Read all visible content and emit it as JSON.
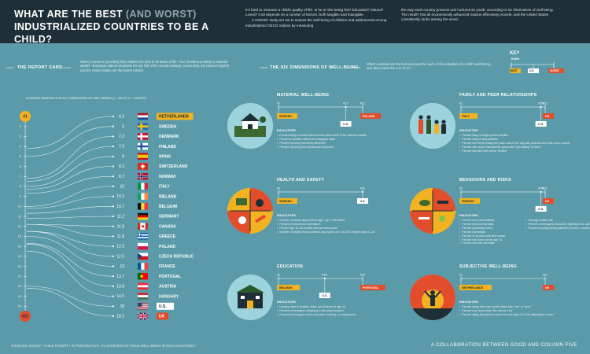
{
  "header": {
    "title_part1": "What are the best",
    "title_part2": "(and worst)",
    "title_part3": "industrialized countries to be a child?",
    "intro_left_1": "It's hard to measure a child's quality of life. Is he or she being fed? Educated? Valued? Loved? It all depends on a number of factors, both tangible and intangible.",
    "intro_left_2": "A UNICEF study set out to assess the well-being of children and adolescents among industrialized OECD nations by measuring",
    "intro_right": "the way each country protects and nurtures its youth, according to six dimensions of well-being. The result? Not all economically advanced nations effectively provide, and the United States consistently ranks among the worst."
  },
  "report_card": {
    "heading": "THE REPORT CARD",
    "description": "When it comes to providing their children the best of all facets of life—from health and safety to material wealth—European nations dominate the top half of the overall rankings. Conversely, the United Kingdom and the United States are the lowest ranked.",
    "axis_caption": "AVERAGE RANKING FOR ALL DIMENSIONS OF WELL-BEING (1 = BEST; 21 = WORST)",
    "best_label": "#1",
    "worst_label": "#21"
  },
  "six_dimensions": {
    "heading": "THE SIX DIMENSIONS OF WELL-BEING",
    "description": "Which countries are the best and worst for each of the indicators of a child's well-being, and where does the U.S. fit in?"
  },
  "key": {
    "title": "KEY",
    "rank_label": "RANK",
    "best": "BEST",
    "us": "U.S.",
    "worst": "WORST"
  },
  "colors": {
    "background": "#5a9aa9",
    "header": "#1f2f37",
    "best": "#f3b320",
    "worst": "#e24d2c",
    "us": "#ffffff",
    "line": "#ffffff"
  },
  "chart_data": {
    "type": "table",
    "title": "Average ranking for all dimensions of well-being (1 = best; 21 = worst)",
    "countries": [
      {
        "name": "NETHERLANDS",
        "score": 4.2,
        "flag": "netherlands-flag"
      },
      {
        "name": "SWEDEN",
        "score": 5,
        "flag": "sweden-flag"
      },
      {
        "name": "DENMARK",
        "score": 7.2,
        "flag": "denmark-flag"
      },
      {
        "name": "FINLAND",
        "score": 7.5,
        "flag": "finland-flag"
      },
      {
        "name": "SPAIN",
        "score": 8,
        "flag": "spain-flag"
      },
      {
        "name": "SWITZERLAND",
        "score": 8.3,
        "flag": "switzerland-flag"
      },
      {
        "name": "NORWAY",
        "score": 8.7,
        "flag": "norway-flag"
      },
      {
        "name": "ITALY",
        "score": 10,
        "flag": "italy-flag"
      },
      {
        "name": "IRELAND",
        "score": 10.2,
        "flag": "ireland-flag"
      },
      {
        "name": "BELGIUM",
        "score": 10.7,
        "flag": "belgium-flag"
      },
      {
        "name": "GERMANY",
        "score": 11.2,
        "flag": "germany-flag"
      },
      {
        "name": "CANADA",
        "score": 11.8,
        "flag": "canada-flag"
      },
      {
        "name": "GREECE",
        "score": 11.8,
        "flag": "greece-flag"
      },
      {
        "name": "POLAND",
        "score": 12.5,
        "flag": "poland-flag"
      },
      {
        "name": "CZECH REPUBLIC",
        "score": 12.5,
        "flag": "czech-flag"
      },
      {
        "name": "FRANCE",
        "score": 13,
        "flag": "france-flag"
      },
      {
        "name": "PORTUGAL",
        "score": 13.7,
        "flag": "portugal-flag"
      },
      {
        "name": "AUSTRIA",
        "score": 13.8,
        "flag": "austria-flag"
      },
      {
        "name": "HUNGARY",
        "score": 14.5,
        "flag": "hungary-flag"
      },
      {
        "name": "U.S.",
        "score": 18,
        "flag": "us-flag"
      },
      {
        "name": "UK",
        "score": 18.2,
        "flag": "uk-flag"
      }
    ],
    "rank_ticks": [
      "1",
      "2",
      "3",
      "4",
      "5",
      "6",
      "7",
      "8",
      "9",
      "10",
      "11",
      "12",
      "13",
      "14",
      "15",
      "16",
      "17",
      "18",
      "19",
      "20",
      "21"
    ],
    "score_range": [
      1,
      21
    ]
  },
  "dimensions": [
    {
      "title": "MATERIAL WELL-BEING",
      "illustration": "house-icon",
      "best_rank": "#1",
      "best_country": "SWEDEN",
      "us_rank": "#17",
      "us_label": "U.S.",
      "worst_rank": "#21",
      "worst_country": "POLAND",
      "us_fraction": 0.8,
      "indicators_heading": "INDICATORS",
      "indicators": [
        "Percent living in homes with incomes below 50% of the national median.",
        "Percent in families without an employed adult.",
        "Percent reporting low family affluence.",
        "Percent reporting few educational resources."
      ]
    },
    {
      "title": "FAMILY AND PEER RELATIONSHIPS",
      "illustration": "family-icon",
      "best_rank": "#1",
      "best_country": "ITALY",
      "us_rank": "#20",
      "us_label": "U.S.",
      "worst_rank": "#21",
      "worst_country": "UK",
      "us_fraction": 0.95,
      "indicators_heading": "INDICATORS",
      "indicators": [
        "Percent living in single-parent families.",
        "Percent living in step-families.",
        "Percent who report eating the main meal of the day with parents more than once a week.",
        "Percent who report that parents spend time \"just talking\" to them.",
        "Percent who find their peers \"helpful.\""
      ]
    },
    {
      "title": "HEALTH AND SAFETY",
      "illustration": "health-icon",
      "best_rank": "#1",
      "best_country": "SWEDEN",
      "us_rank": "#21",
      "us_label": "U.S.",
      "worst_rank": "",
      "worst_country": "",
      "us_fraction": 1.0,
      "indicators_heading": "INDICATORS",
      "indicators": [
        "Number of infants dying before age 1 per 1,000 births.",
        "Percent of infants born premature.",
        "Percent age 12–23 months who are immunized.",
        "Number of deaths from accidents and injuries per 100,000 children aged 0–19."
      ]
    },
    {
      "title": "BEHAVIORS AND RISKS",
      "illustration": "risks-icon",
      "best_rank": "#1",
      "best_country": "SWEDEN",
      "us_rank": "#20",
      "us_label": "U.S.",
      "worst_rank": "#21",
      "worst_country": "UK",
      "us_fraction": 0.95,
      "indicators_heading": "INDICATORS",
      "indicators": [
        "Percent who eat breakfast.",
        "Percent who eat fruit daily.",
        "Percent physically active.",
        "Percent overweight.",
        "Percent of 15-year-olds who smoke.",
        "Percent who have sex by age 15.",
        "Percent who use cannabis."
      ],
      "indicators_col2": [
        "Teenage fertility rate.",
        "Percent of teenagers involved in fighting in the last year.",
        "Percent reporting being bullied in the last 2 months."
      ]
    },
    {
      "title": "EDUCATION",
      "illustration": "school-icon",
      "best_rank": "#1",
      "best_country": "BELGIUM",
      "us_rank": "#12",
      "us_label": "U.S.",
      "worst_rank": "#21",
      "worst_country": "PORTUGAL",
      "us_fraction": 0.55,
      "indicators_heading": "INDICATORS",
      "indicators": [
        "Literacy rates in English, Math, and Science at age 15.",
        "Percent of teenagers remaining in the school system.",
        "Percent of teenagers not in education, training, or employment."
      ]
    },
    {
      "title": "SUBJECTIVE WELL-BEING",
      "illustration": "sunrise-icon",
      "best_rank": "#1",
      "best_country": "NETHERLANDS",
      "us_rank": "",
      "us_label": "",
      "worst_rank": "#21",
      "worst_country": "UK",
      "us_fraction": 0,
      "indicators_heading": "INDICATORS",
      "indicators": [
        "Percent rating their own health better than \"fair\" or \"poor.\"",
        "Percent who report they \"like school a lot.\"",
        "Percent rating themselves above the mid-point of a \"Life Satisfaction Scale.\""
      ]
    }
  ],
  "footer": {
    "sources": "SOURCES: UNICEF, \"CHILD POVERTY IN PERSPECTIVE: AN OVERVIEW OF CHILD WELL-BEING IN RICH COUNTRIES.\"",
    "collab": "A COLLABORATION BETWEEN GOOD AND COLUMN FIVE"
  }
}
